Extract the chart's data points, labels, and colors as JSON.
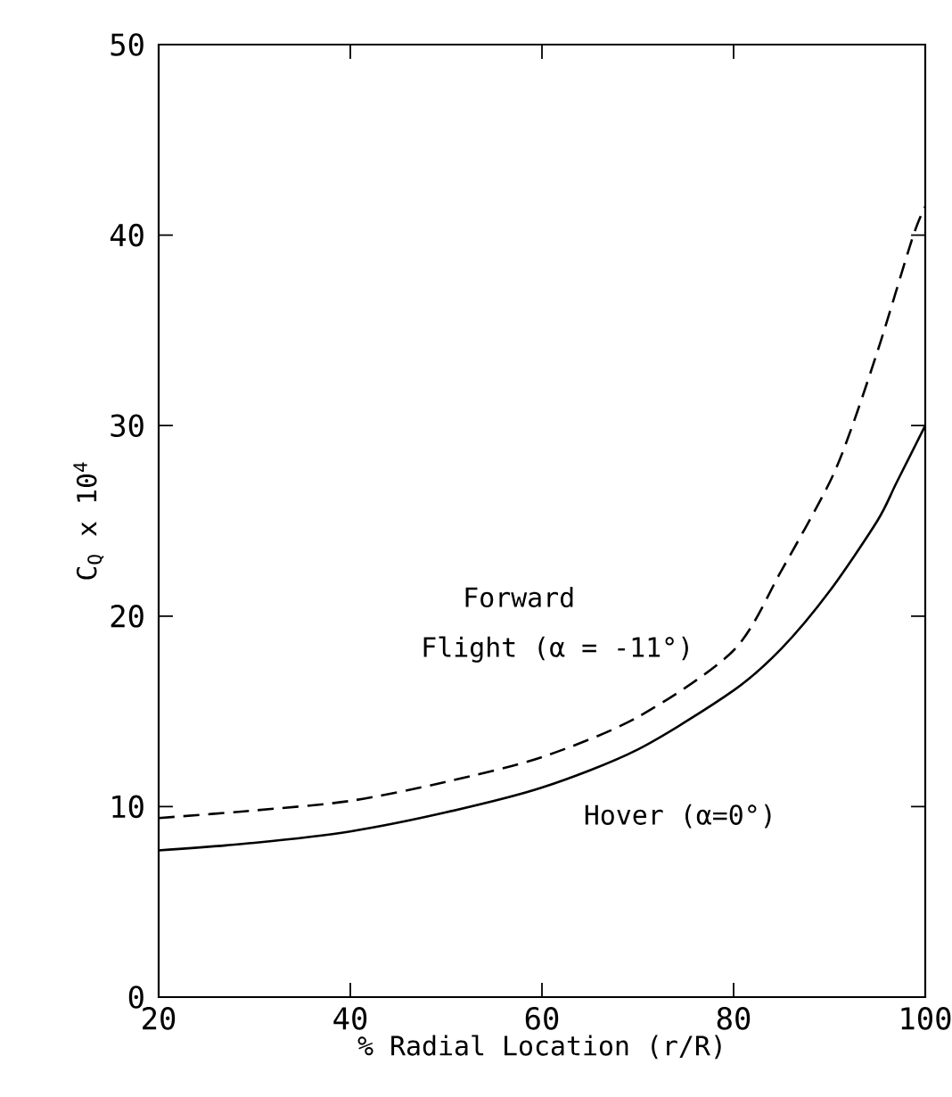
{
  "chart_data": {
    "type": "line",
    "xlabel": "% Radial Location (r/R)",
    "ylabel": "C$_{Q}$ x 10$^{4}$",
    "xlim": [
      20,
      100
    ],
    "ylim": [
      0,
      50
    ],
    "xticks": [
      20,
      40,
      60,
      80,
      100
    ],
    "yticks": [
      0,
      10,
      20,
      30,
      40,
      50
    ],
    "grid": false,
    "marker": "none",
    "series": [
      {
        "color": "#000000",
        "line_style": "solid",
        "x": [
          20,
          30,
          40,
          50,
          60,
          70,
          80,
          85,
          90,
          95,
          97,
          100
        ],
        "values": [
          7.7,
          8.1,
          8.7,
          9.7,
          11.0,
          13.0,
          16.1,
          18.3,
          21.3,
          25.0,
          27.0,
          30.0
        ]
      },
      {
        "color": "#000000",
        "line_style": "dashed",
        "x": [
          20,
          30,
          40,
          50,
          60,
          70,
          80,
          85,
          90,
          92.4,
          95.4,
          98.7,
          100
        ],
        "values": [
          9.4,
          9.8,
          10.3,
          11.3,
          12.6,
          14.7,
          18.2,
          22.4,
          27.0,
          30.0,
          34.5,
          39.9,
          41.5
        ]
      }
    ],
    "annotations": [
      "Forward",
      "Flight (α = -11°)",
      "Hover (α=0°)"
    ]
  }
}
